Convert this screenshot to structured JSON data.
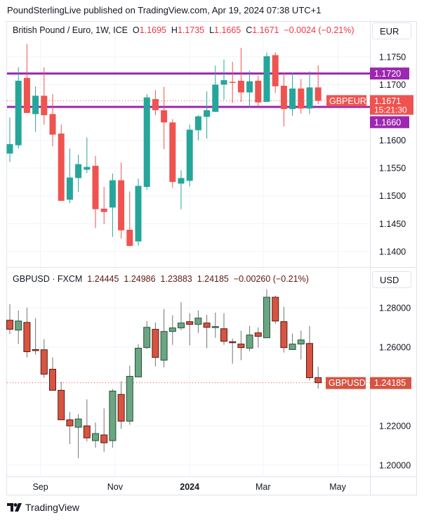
{
  "header": {
    "published": "PoundSterlingLive published on TradingView.com, Apr 19, 2024 07:38 UTC+1"
  },
  "colors": {
    "up_top": "#26a69a",
    "down_top": "#ef5350",
    "up_bottom": "#6ba583",
    "up_bottom_border": "#225437",
    "down_bottom": "#d75442",
    "down_bottom_border": "#5b1a13",
    "level_line": "#9c27b0",
    "grid": "#f0f3fa"
  },
  "footer": {
    "brand": "TradingView",
    "logo_icon": "tradingview-logo-icon"
  },
  "chart_data": [
    {
      "type": "candlestick",
      "legend": {
        "symbol": "British Pound / Euro, 1W, ICE",
        "o_label": "O",
        "o": "1.1695",
        "h_label": "H",
        "h": "1.1735",
        "l_label": "L",
        "l": "1.1665",
        "c_label": "C",
        "c": "1.1671",
        "change": "−0.0024 (−0.21%)"
      },
      "currency": "EUR",
      "ylim": [
        1.1372,
        1.1813
      ],
      "y_ticks": [
        "1.1750",
        "1.1700",
        "1.1600",
        "1.1550",
        "1.1500",
        "1.1450",
        "1.1400"
      ],
      "levels": [
        {
          "value": 1.172,
          "label": "1.1720"
        },
        {
          "value": 1.166,
          "label": "1.1660"
        }
      ],
      "last_price": {
        "value": 1.1671,
        "symbol_label": "GBPEUR",
        "price_label": "1.1671",
        "countdown": "15:21:30"
      },
      "ohlc": [
        [
          1.1576,
          1.1641,
          1.1561,
          1.1593
        ],
        [
          1.1591,
          1.1731,
          1.1585,
          1.1707
        ],
        [
          1.1712,
          1.1773,
          1.1649,
          1.1649
        ],
        [
          1.1647,
          1.1697,
          1.1615,
          1.168
        ],
        [
          1.168,
          1.1731,
          1.1628,
          1.1645
        ],
        [
          1.1647,
          1.1683,
          1.1589,
          1.161
        ],
        [
          1.1612,
          1.1628,
          1.1491,
          1.1491
        ],
        [
          1.1493,
          1.1585,
          1.1487,
          1.1533
        ],
        [
          1.1532,
          1.1574,
          1.1507,
          1.1557
        ],
        [
          1.1547,
          1.1605,
          1.1541,
          1.1552
        ],
        [
          1.1554,
          1.1572,
          1.1442,
          1.1476
        ],
        [
          1.1477,
          1.1516,
          1.1449,
          1.1471
        ],
        [
          1.1479,
          1.154,
          1.1426,
          1.1528
        ],
        [
          1.1528,
          1.156,
          1.1423,
          1.1438
        ],
        [
          1.1439,
          1.1508,
          1.1409,
          1.141
        ],
        [
          1.1418,
          1.1531,
          1.141,
          1.1518
        ],
        [
          1.1516,
          1.1683,
          1.1511,
          1.1677
        ],
        [
          1.1674,
          1.169,
          1.1645,
          1.1654
        ],
        [
          1.1654,
          1.1696,
          1.1584,
          1.1632
        ],
        [
          1.1632,
          1.1638,
          1.1515,
          1.1525
        ],
        [
          1.1522,
          1.1546,
          1.1476,
          1.1532
        ],
        [
          1.1527,
          1.1628,
          1.1517,
          1.1619
        ],
        [
          1.1618,
          1.1645,
          1.16,
          1.1643
        ],
        [
          1.1642,
          1.1688,
          1.1603,
          1.1654
        ],
        [
          1.1651,
          1.1734,
          1.1651,
          1.17
        ],
        [
          1.17,
          1.1745,
          1.1673,
          1.1708
        ],
        [
          1.1705,
          1.1741,
          1.1667,
          1.1704
        ],
        [
          1.1707,
          1.1766,
          1.1669,
          1.1686
        ],
        [
          1.1686,
          1.1725,
          1.1658,
          1.1706
        ],
        [
          1.1707,
          1.1716,
          1.1661,
          1.1668
        ],
        [
          1.1669,
          1.1758,
          1.1669,
          1.1751
        ],
        [
          1.1753,
          1.1758,
          1.1685,
          1.1697
        ],
        [
          1.1698,
          1.1722,
          1.1625,
          1.1656
        ],
        [
          1.1656,
          1.1722,
          1.1644,
          1.1693
        ],
        [
          1.1693,
          1.171,
          1.1648,
          1.1657
        ],
        [
          1.1657,
          1.1724,
          1.1647,
          1.1695
        ],
        [
          1.1695,
          1.1735,
          1.1665,
          1.1671
        ]
      ]
    },
    {
      "type": "candlestick",
      "legend": {
        "symbol": "GBPUSD · FXCM",
        "o": "1.24445",
        "h": "1.24986",
        "l": "1.23883",
        "c": "1.24185",
        "change": "−0.00260 (−0.21%)"
      },
      "currency": "USD",
      "ylim": [
        1.1942,
        1.3003
      ],
      "y_ticks": [
        "1.28000",
        "1.26000",
        "1.22000",
        "1.20000"
      ],
      "last_price": {
        "value": 1.24185,
        "symbol_label": "GBPUSD",
        "price_label": "1.24185"
      },
      "ohlc": [
        [
          1.2736,
          1.2818,
          1.2665,
          1.269
        ],
        [
          1.2686,
          1.2786,
          1.2615,
          1.2732
        ],
        [
          1.2725,
          1.28,
          1.2547,
          1.2576
        ],
        [
          1.2587,
          1.2747,
          1.2561,
          1.2585
        ],
        [
          1.2586,
          1.264,
          1.2444,
          1.2462
        ],
        [
          1.2487,
          1.2547,
          1.238,
          1.238
        ],
        [
          1.238,
          1.2423,
          1.223,
          1.223
        ],
        [
          1.223,
          1.227,
          1.2106,
          1.2199
        ],
        [
          1.2192,
          1.2259,
          1.2035,
          1.2234
        ],
        [
          1.2199,
          1.2334,
          1.212,
          1.2138
        ],
        [
          1.2124,
          1.2216,
          1.2088,
          1.216
        ],
        [
          1.2153,
          1.2288,
          1.2067,
          1.2113
        ],
        [
          1.2124,
          1.2387,
          1.2088,
          1.2376
        ],
        [
          1.2359,
          1.2426,
          1.2184,
          1.2223
        ],
        [
          1.2223,
          1.2505,
          1.2205,
          1.2451
        ],
        [
          1.2448,
          1.2615,
          1.2448,
          1.2594
        ],
        [
          1.2597,
          1.2732,
          1.259,
          1.27
        ],
        [
          1.269,
          1.2725,
          1.2501,
          1.2547
        ],
        [
          1.2533,
          1.2793,
          1.2497,
          1.2679
        ],
        [
          1.2679,
          1.2761,
          1.2611,
          1.2697
        ],
        [
          1.2697,
          1.2828,
          1.2686,
          1.2722
        ],
        [
          1.2729,
          1.2772,
          1.2608,
          1.2715
        ],
        [
          1.2715,
          1.2786,
          1.2672,
          1.2747
        ],
        [
          1.2722,
          1.2764,
          1.2594,
          1.27
        ],
        [
          1.2703,
          1.2775,
          1.2647,
          1.2704
        ],
        [
          1.2693,
          1.2772,
          1.2611,
          1.2629
        ],
        [
          1.2627,
          1.2643,
          1.2515,
          1.2625
        ],
        [
          1.2615,
          1.2683,
          1.2533,
          1.2597
        ],
        [
          1.2594,
          1.2707,
          1.2579,
          1.2661
        ],
        [
          1.2672,
          1.27,
          1.2597,
          1.2654
        ],
        [
          1.2647,
          1.2893,
          1.2647,
          1.2853
        ],
        [
          1.2853,
          1.2861,
          1.2718,
          1.2732
        ],
        [
          1.2729,
          1.2804,
          1.2572,
          1.2597
        ],
        [
          1.2587,
          1.2668,
          1.2587,
          1.2615
        ],
        [
          1.2615,
          1.2683,
          1.2537,
          1.2636
        ],
        [
          1.2618,
          1.2707,
          1.243,
          1.2444
        ],
        [
          1.24445,
          1.24986,
          1.23883,
          1.24185
        ]
      ]
    }
  ],
  "x_axis": {
    "dates": [
      "2023-08-07",
      "2023-08-14",
      "2023-08-21",
      "2023-08-28",
      "2023-09-04",
      "2023-09-11",
      "2023-09-18",
      "2023-09-25",
      "2023-10-02",
      "2023-10-09",
      "2023-10-16",
      "2023-10-23",
      "2023-10-30",
      "2023-11-06",
      "2023-11-13",
      "2023-11-20",
      "2023-11-27",
      "2023-12-04",
      "2023-12-11",
      "2023-12-18",
      "2023-12-25",
      "2024-01-01",
      "2024-01-08",
      "2024-01-15",
      "2024-01-22",
      "2024-01-29",
      "2024-02-05",
      "2024-02-12",
      "2024-02-19",
      "2024-02-26",
      "2024-03-04",
      "2024-03-11",
      "2024-03-18",
      "2024-03-25",
      "2024-04-01",
      "2024-04-08",
      "2024-04-15"
    ],
    "ticks": [
      {
        "label": "Sep",
        "date": "2023-09-01"
      },
      {
        "label": "Nov",
        "date": "2023-11-01"
      },
      {
        "label": "2024",
        "date": "2024-01-01",
        "bold": true
      },
      {
        "label": "Mar",
        "date": "2024-03-01"
      },
      {
        "label": "May",
        "date": "2024-05-01"
      }
    ]
  }
}
